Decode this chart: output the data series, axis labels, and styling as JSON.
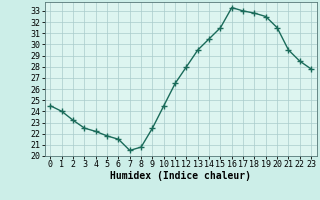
{
  "x": [
    0,
    1,
    2,
    3,
    4,
    5,
    6,
    7,
    8,
    9,
    10,
    11,
    12,
    13,
    14,
    15,
    16,
    17,
    18,
    19,
    20,
    21,
    22,
    23
  ],
  "y": [
    24.5,
    24.0,
    23.2,
    22.5,
    22.2,
    21.8,
    21.5,
    20.5,
    20.8,
    22.5,
    24.5,
    26.5,
    28.0,
    29.5,
    30.5,
    31.5,
    33.3,
    33.0,
    32.8,
    32.5,
    31.5,
    29.5,
    28.5,
    27.8
  ],
  "xlabel": "Humidex (Indice chaleur)",
  "ylim": [
    20,
    33.8
  ],
  "xlim": [
    -0.5,
    23.5
  ],
  "yticks": [
    20,
    21,
    22,
    23,
    24,
    25,
    26,
    27,
    28,
    29,
    30,
    31,
    32,
    33
  ],
  "xticks": [
    0,
    1,
    2,
    3,
    4,
    5,
    6,
    7,
    8,
    9,
    10,
    11,
    12,
    13,
    14,
    15,
    16,
    17,
    18,
    19,
    20,
    21,
    22,
    23
  ],
  "line_color": "#1a6b5a",
  "marker": "+",
  "bg_color": "#cceee8",
  "grid_color": "#aacccc",
  "axes_bg": "#ddf5f0",
  "xlabel_fontsize": 7,
  "tick_fontsize": 6,
  "linewidth": 1.0,
  "markersize": 4,
  "markeredgewidth": 1.0
}
